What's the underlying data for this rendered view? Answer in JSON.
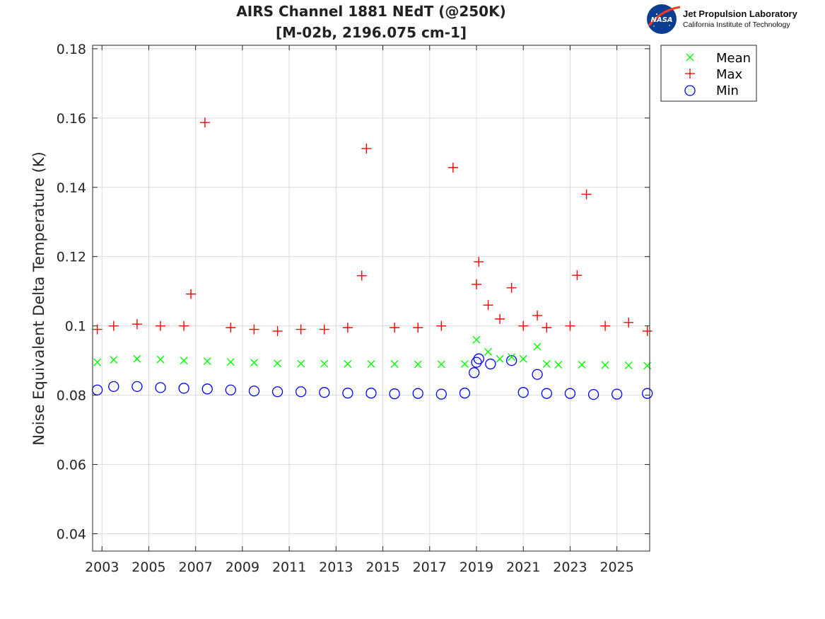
{
  "logo": {
    "org_name": "Jet Propulsion Laboratory",
    "org_sub": "California Institute of Technology",
    "badge_text": "NASA"
  },
  "chart_data": {
    "type": "scatter",
    "title_line1": "AIRS Channel 1881 NEdT (@250K)",
    "title_line2": "[M-02b, 2196.075 cm-1]",
    "xlabel": "",
    "ylabel": "Noise Equivalent Delta Temperature (K)",
    "xlim": [
      2002.6,
      2026.4
    ],
    "ylim": [
      0.035,
      0.181
    ],
    "x_ticks": [
      2003,
      2005,
      2007,
      2009,
      2011,
      2013,
      2015,
      2017,
      2019,
      2021,
      2023,
      2025
    ],
    "x_tick_labels": [
      "2003",
      "2005",
      "2007",
      "2009",
      "2011",
      "2013",
      "2015",
      "2017",
      "2019",
      "2021",
      "2023",
      "2025"
    ],
    "y_ticks": [
      0.04,
      0.06,
      0.08,
      0.1,
      0.12,
      0.14,
      0.16,
      0.18
    ],
    "y_tick_labels": [
      "0.04",
      "0.06",
      "0.08",
      "0.1",
      "0.12",
      "0.14",
      "0.16",
      "0.18"
    ],
    "grid": true,
    "legend_position": "top-right-outside",
    "series": [
      {
        "name": "Mean",
        "marker": "x",
        "color": "#00ff00",
        "x": [
          2002.8,
          2003.5,
          2004.5,
          2005.5,
          2006.5,
          2007.5,
          2008.5,
          2009.5,
          2010.5,
          2011.5,
          2012.5,
          2013.5,
          2014.5,
          2015.5,
          2016.5,
          2017.5,
          2018.5,
          2019.0,
          2019.5,
          2020.0,
          2020.5,
          2021.0,
          2021.6,
          2022.0,
          2022.5,
          2023.5,
          2024.5,
          2025.5,
          2026.3
        ],
        "y": [
          0.0895,
          0.0902,
          0.0905,
          0.0903,
          0.09,
          0.0898,
          0.0896,
          0.0894,
          0.0892,
          0.0891,
          0.0891,
          0.089,
          0.089,
          0.089,
          0.0889,
          0.0889,
          0.089,
          0.096,
          0.0925,
          0.0905,
          0.091,
          0.0905,
          0.094,
          0.089,
          0.0888,
          0.0888,
          0.0887,
          0.0886,
          0.0885
        ]
      },
      {
        "name": "Max",
        "marker": "+",
        "color": "#ff0000",
        "x": [
          2002.8,
          2003.5,
          2004.5,
          2005.5,
          2006.5,
          2006.8,
          2007.4,
          2008.5,
          2009.5,
          2010.5,
          2011.5,
          2012.5,
          2013.5,
          2014.1,
          2014.3,
          2015.5,
          2016.5,
          2017.5,
          2018.0,
          2019.0,
          2019.1,
          2019.5,
          2020.0,
          2020.5,
          2021.0,
          2021.6,
          2022.0,
          2023.0,
          2023.3,
          2023.7,
          2024.5,
          2025.5,
          2026.3
        ],
        "y": [
          0.099,
          0.1,
          0.1005,
          0.1,
          0.1,
          0.1092,
          0.1587,
          0.0995,
          0.099,
          0.0985,
          0.099,
          0.099,
          0.0995,
          0.1145,
          0.1512,
          0.0995,
          0.0995,
          0.1,
          0.1457,
          0.112,
          0.1185,
          0.106,
          0.102,
          0.111,
          0.1,
          0.103,
          0.0995,
          0.1,
          0.1146,
          0.138,
          0.1,
          0.101,
          0.0985
        ]
      },
      {
        "name": "Min",
        "marker": "o",
        "color": "#0000ff",
        "x": [
          2002.8,
          2003.5,
          2004.5,
          2005.5,
          2006.5,
          2007.5,
          2008.5,
          2009.5,
          2010.5,
          2011.5,
          2012.5,
          2013.5,
          2014.5,
          2015.5,
          2016.5,
          2017.5,
          2018.5,
          2018.9,
          2019.0,
          2019.1,
          2019.6,
          2020.5,
          2021.0,
          2021.6,
          2022.0,
          2023.0,
          2024.0,
          2025.0,
          2026.3
        ],
        "y": [
          0.0815,
          0.0825,
          0.0825,
          0.0822,
          0.082,
          0.0818,
          0.0815,
          0.0812,
          0.081,
          0.081,
          0.0808,
          0.0806,
          0.0806,
          0.0804,
          0.0805,
          0.0803,
          0.0806,
          0.0865,
          0.0895,
          0.0905,
          0.089,
          0.09,
          0.0808,
          0.086,
          0.0805,
          0.0805,
          0.0802,
          0.0803,
          0.0805
        ]
      }
    ]
  }
}
